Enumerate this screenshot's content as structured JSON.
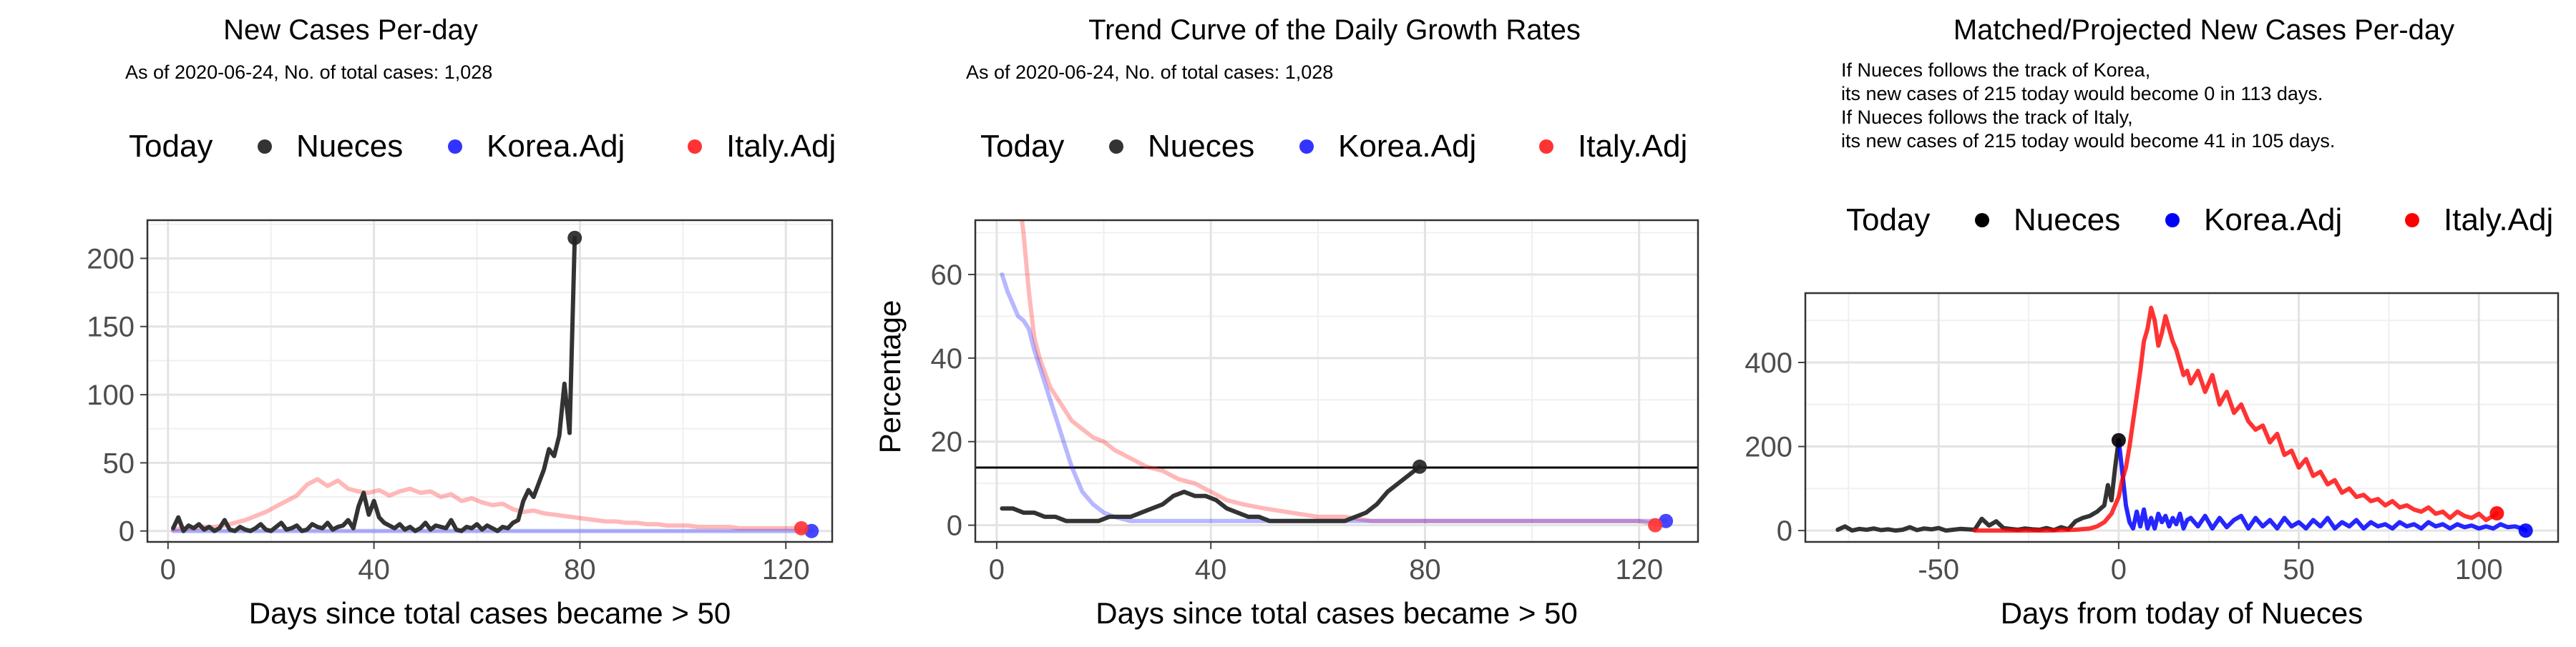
{
  "chart_data": [
    {
      "type": "line",
      "title": "New Cases Per-day",
      "subtitle": "As of 2020-06-24, No. of total cases: 1,028",
      "legend": {
        "position": "top",
        "title": "Today",
        "entries": [
          {
            "label": "Nueces",
            "color": "#333333"
          },
          {
            "label": "Korea.Adj",
            "color": "#3333ff"
          },
          {
            "label": "Italy.Adj",
            "color": "#ff3333"
          }
        ]
      },
      "xlabel": "Days since total cases became > 50",
      "ylabel": "",
      "xlim": [
        -4,
        129
      ],
      "ylim": [
        -8,
        228
      ],
      "xticks": [
        0,
        40,
        80,
        120
      ],
      "yticks": [
        0,
        50,
        100,
        150,
        200
      ],
      "grid": true,
      "series": [
        {
          "name": "Italy.Adj",
          "color": "#ff3333",
          "opacity": 0.35,
          "width": 6,
          "x": [
            1,
            3,
            5,
            7,
            9,
            11,
            13,
            15,
            17,
            19,
            21,
            23,
            25,
            27,
            29,
            31,
            33,
            35,
            37,
            39,
            41,
            43,
            45,
            47,
            49,
            51,
            53,
            55,
            57,
            59,
            61,
            63,
            65,
            67,
            69,
            71,
            73,
            75,
            77,
            79,
            81,
            83,
            85,
            87,
            89,
            91,
            93,
            95,
            97,
            99,
            101,
            103,
            105,
            107,
            109,
            111,
            113,
            115,
            117,
            119,
            121,
            123
          ],
          "y": [
            1,
            2,
            2,
            3,
            3,
            4,
            6,
            8,
            11,
            14,
            18,
            22,
            26,
            34,
            38,
            33,
            37,
            31,
            29,
            28,
            30,
            26,
            29,
            31,
            28,
            29,
            25,
            27,
            22,
            24,
            21,
            19,
            20,
            16,
            14,
            15,
            13,
            12,
            11,
            10,
            9,
            8,
            7,
            7,
            6,
            6,
            5,
            5,
            4,
            4,
            4,
            3,
            3,
            3,
            3,
            2,
            2,
            2,
            2,
            2,
            2,
            2
          ]
        },
        {
          "name": "Korea.Adj",
          "color": "#3333ff",
          "opacity": 0.35,
          "width": 6,
          "x": [
            1,
            10,
            20,
            30,
            40,
            50,
            60,
            70,
            80,
            90,
            100,
            110,
            120,
            125
          ],
          "y": [
            0,
            0,
            0,
            0,
            0,
            0,
            0,
            0,
            0,
            0,
            0,
            0,
            0,
            0
          ]
        },
        {
          "name": "Nueces",
          "color": "#333333",
          "opacity": 1,
          "width": 6,
          "x": [
            1,
            2,
            3,
            4,
            5,
            6,
            7,
            8,
            9,
            10,
            11,
            12,
            13,
            14,
            15,
            16,
            17,
            18,
            19,
            20,
            21,
            22,
            23,
            24,
            25,
            26,
            27,
            28,
            29,
            30,
            31,
            32,
            33,
            34,
            35,
            36,
            37,
            38,
            39,
            40,
            41,
            42,
            43,
            44,
            45,
            46,
            47,
            48,
            49,
            50,
            51,
            52,
            53,
            54,
            55,
            56,
            57,
            58,
            59,
            60,
            61,
            62,
            63,
            64,
            65,
            66,
            67,
            68,
            69,
            70,
            71,
            72,
            73,
            74,
            75,
            76,
            77,
            78,
            79
          ],
          "y": [
            2,
            10,
            0,
            4,
            2,
            5,
            1,
            3,
            0,
            2,
            8,
            1,
            0,
            3,
            1,
            0,
            2,
            5,
            1,
            0,
            3,
            6,
            1,
            2,
            4,
            0,
            1,
            5,
            3,
            2,
            6,
            1,
            3,
            4,
            8,
            2,
            18,
            28,
            12,
            22,
            10,
            6,
            4,
            2,
            5,
            1,
            3,
            0,
            2,
            6,
            1,
            4,
            3,
            2,
            8,
            1,
            0,
            3,
            2,
            5,
            1,
            4,
            2,
            0,
            3,
            2,
            6,
            8,
            22,
            30,
            25,
            35,
            45,
            60,
            55,
            70,
            108,
            72,
            215
          ]
        }
      ],
      "today_points": [
        {
          "series": "Nueces",
          "x": 79,
          "y": 215,
          "color": "#222222"
        },
        {
          "series": "Korea.Adj",
          "x": 125,
          "y": 0,
          "color": "#3333ff"
        },
        {
          "series": "Italy.Adj",
          "x": 123,
          "y": 2,
          "color": "#ff3333"
        }
      ]
    },
    {
      "type": "line",
      "title": "Trend Curve of the Daily Growth Rates",
      "subtitle": "As of 2020-06-24, No. of total cases: 1,028",
      "legend": {
        "position": "top",
        "title": "Today",
        "entries": [
          {
            "label": "Nueces",
            "color": "#333333"
          },
          {
            "label": "Korea.Adj",
            "color": "#3333ff"
          },
          {
            "label": "Italy.Adj",
            "color": "#ff3333"
          }
        ]
      },
      "xlabel": "Days since total cases became > 50",
      "ylabel": "Percentage",
      "xlim": [
        -4,
        131
      ],
      "ylim": [
        -4,
        73
      ],
      "xticks": [
        0,
        40,
        80,
        120
      ],
      "yticks": [
        0,
        20,
        40,
        60
      ],
      "grid": true,
      "hline": 13.8,
      "series": [
        {
          "name": "Italy.Adj",
          "color": "#ff3333",
          "opacity": 0.35,
          "width": 6,
          "x": [
            4,
            5,
            6,
            7,
            8,
            10,
            12,
            14,
            16,
            18,
            20,
            22,
            25,
            28,
            31,
            34,
            37,
            40,
            43,
            46,
            50,
            55,
            60,
            65,
            70,
            75,
            80,
            85,
            90,
            95,
            100,
            105,
            110,
            115,
            120,
            124
          ],
          "y": [
            80,
            70,
            56,
            45,
            40,
            33,
            29,
            25,
            23,
            21,
            20,
            18,
            16,
            14,
            13,
            11,
            10,
            8,
            6,
            5,
            4,
            3,
            2,
            2,
            1,
            1,
            1,
            1,
            1,
            1,
            1,
            1,
            1,
            1,
            1,
            0
          ]
        },
        {
          "name": "Korea.Adj",
          "color": "#3333ff",
          "opacity": 0.35,
          "width": 6,
          "x": [
            1,
            2,
            3,
            4,
            5,
            6,
            7,
            8,
            9,
            10,
            11,
            12,
            13,
            14,
            15,
            16,
            18,
            20,
            22,
            25,
            30,
            40,
            50,
            60,
            70,
            80,
            90,
            100,
            110,
            120,
            125
          ],
          "y": [
            60,
            56,
            53,
            50,
            49,
            47,
            42,
            38,
            34,
            30,
            26,
            22,
            18,
            14,
            11,
            8,
            5,
            3,
            2,
            1,
            1,
            1,
            1,
            1,
            1,
            1,
            1,
            1,
            1,
            1,
            1
          ]
        },
        {
          "name": "Nueces",
          "color": "#333333",
          "opacity": 1,
          "width": 6,
          "x": [
            1,
            3,
            5,
            7,
            9,
            11,
            13,
            15,
            17,
            19,
            21,
            23,
            25,
            27,
            29,
            31,
            33,
            35,
            37,
            39,
            41,
            43,
            45,
            47,
            49,
            51,
            53,
            55,
            57,
            59,
            61,
            63,
            65,
            67,
            69,
            71,
            73,
            75,
            77,
            79
          ],
          "y": [
            4,
            4,
            3,
            3,
            2,
            2,
            1,
            1,
            1,
            1,
            2,
            2,
            2,
            3,
            4,
            5,
            7,
            8,
            7,
            7,
            6,
            4,
            3,
            2,
            2,
            1,
            1,
            1,
            1,
            1,
            1,
            1,
            1,
            2,
            3,
            5,
            8,
            10,
            12,
            14
          ]
        }
      ],
      "today_points": [
        {
          "series": "Nueces",
          "x": 79,
          "y": 14,
          "color": "#222222"
        },
        {
          "series": "Korea.Adj",
          "x": 125,
          "y": 1,
          "color": "#3333ff"
        },
        {
          "series": "Italy.Adj",
          "x": 123,
          "y": 0,
          "color": "#ff3333"
        }
      ]
    },
    {
      "type": "line",
      "title": "Matched/Projected New Cases Per-day",
      "notes": [
        "If Nueces follows the track of Korea,",
        "its new cases of 215 today would become 0 in 113 days.",
        "If Nueces follows the track of Italy,",
        "its new cases of 215 today would become 41 in 105 days."
      ],
      "legend": {
        "position": "top",
        "title": "Today",
        "entries": [
          {
            "label": "Nueces",
            "color": "#000000"
          },
          {
            "label": "Korea.Adj",
            "color": "#0000ff"
          },
          {
            "label": "Italy.Adj",
            "color": "#ff0000"
          }
        ]
      },
      "xlabel": "Days from today of Nueces",
      "ylabel": "",
      "xlim": [
        -87,
        122
      ],
      "ylim": [
        -27,
        565
      ],
      "xticks": [
        -50,
        0,
        50,
        100
      ],
      "yticks": [
        0,
        200,
        400
      ],
      "grid": true,
      "series": [
        {
          "name": "Nueces",
          "color": "#333333",
          "opacity": 1,
          "width": 6,
          "x": [
            -78,
            -76,
            -74,
            -72,
            -70,
            -68,
            -66,
            -64,
            -62,
            -60,
            -58,
            -56,
            -54,
            -52,
            -50,
            -48,
            -46,
            -44,
            -42,
            -40,
            -38,
            -36,
            -34,
            -32,
            -30,
            -28,
            -26,
            -24,
            -22,
            -20,
            -18,
            -16,
            -14,
            -12,
            -10,
            -8,
            -6,
            -4,
            -3,
            -2,
            -1,
            0
          ],
          "y": [
            2,
            10,
            0,
            4,
            2,
            5,
            1,
            3,
            0,
            2,
            8,
            1,
            5,
            3,
            6,
            0,
            2,
            4,
            3,
            2,
            28,
            12,
            22,
            6,
            4,
            2,
            5,
            3,
            2,
            6,
            1,
            8,
            3,
            22,
            30,
            35,
            45,
            60,
            108,
            72,
            150,
            215
          ]
        },
        {
          "name": "Korea.Adj",
          "color": "#0000ff",
          "opacity": 0.85,
          "width": 6,
          "x": [
            0,
            1,
            2,
            3,
            4,
            5,
            6,
            7,
            8,
            9,
            10,
            11,
            12,
            13,
            14,
            15,
            16,
            17,
            18,
            19,
            20,
            22,
            24,
            26,
            28,
            30,
            32,
            34,
            36,
            38,
            40,
            42,
            44,
            46,
            48,
            50,
            52,
            54,
            56,
            58,
            60,
            62,
            64,
            66,
            68,
            70,
            72,
            74,
            76,
            78,
            80,
            82,
            84,
            86,
            88,
            90,
            92,
            94,
            96,
            98,
            100,
            102,
            104,
            106,
            108,
            110,
            112,
            113
          ],
          "y": [
            215,
            140,
            60,
            20,
            5,
            45,
            10,
            50,
            5,
            30,
            5,
            40,
            20,
            35,
            10,
            30,
            15,
            40,
            5,
            25,
            30,
            10,
            35,
            5,
            30,
            8,
            25,
            35,
            5,
            30,
            10,
            25,
            5,
            30,
            10,
            20,
            5,
            25,
            10,
            30,
            5,
            20,
            10,
            25,
            5,
            20,
            10,
            15,
            5,
            20,
            10,
            15,
            5,
            20,
            10,
            15,
            5,
            15,
            8,
            12,
            5,
            10,
            5,
            15,
            8,
            10,
            5,
            0
          ]
        },
        {
          "name": "Italy.Adj",
          "color": "#ff0000",
          "opacity": 0.8,
          "width": 6,
          "x": [
            -40,
            -30,
            -20,
            -12,
            -8,
            -6,
            -4,
            -2,
            0,
            1,
            2,
            3,
            4,
            5,
            6,
            7,
            8,
            9,
            10,
            11,
            12,
            13,
            14,
            15,
            16,
            17,
            18,
            19,
            20,
            22,
            24,
            26,
            28,
            30,
            32,
            34,
            36,
            38,
            40,
            42,
            44,
            46,
            48,
            50,
            52,
            54,
            56,
            58,
            60,
            62,
            64,
            66,
            68,
            70,
            72,
            74,
            76,
            78,
            80,
            82,
            84,
            86,
            88,
            90,
            92,
            94,
            96,
            98,
            100,
            102,
            104,
            105
          ],
          "y": [
            0,
            0,
            0,
            2,
            5,
            10,
            20,
            40,
            80,
            120,
            150,
            200,
            260,
            320,
            380,
            450,
            480,
            530,
            500,
            440,
            470,
            510,
            480,
            450,
            430,
            400,
            370,
            380,
            350,
            380,
            330,
            370,
            300,
            330,
            280,
            300,
            260,
            240,
            250,
            210,
            230,
            180,
            190,
            150,
            170,
            130,
            140,
            110,
            120,
            90,
            100,
            80,
            85,
            70,
            75,
            60,
            70,
            55,
            60,
            50,
            45,
            55,
            40,
            45,
            30,
            45,
            35,
            30,
            40,
            25,
            35,
            41
          ]
        }
      ],
      "today_points": [
        {
          "series": "Nueces",
          "x": 0,
          "y": 215,
          "color": "#000000"
        },
        {
          "series": "Korea.Adj",
          "x": 113,
          "y": 0,
          "color": "#0000ff"
        },
        {
          "series": "Italy.Adj",
          "x": 105,
          "y": 41,
          "color": "#ff0000"
        }
      ]
    }
  ]
}
